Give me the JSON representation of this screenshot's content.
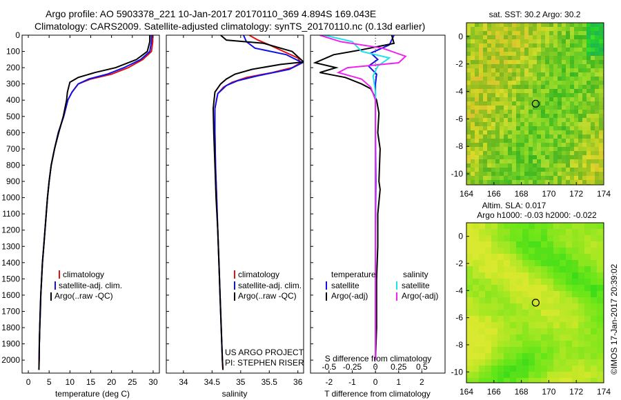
{
  "header": {
    "line1": "Argo profile: AO 5903378_221 10-Jan-2017 20170110_369 4.894S 169.043E",
    "line2": "Climatology: CARS2009. Satellite-adjusted climatology: synTS_20170110.nc (0.13d earlier)"
  },
  "colors": {
    "climatology": "#e01010",
    "satellite": "#1010e8",
    "argo": "#000000",
    "sal_satellite": "#22e0ee",
    "sal_argo": "#ee22ee"
  },
  "chart_data": [
    {
      "type": "line",
      "title": "",
      "xlabel": "temperature (deg C)",
      "ylabel": "",
      "xlim": [
        -1.5,
        31.5
      ],
      "ylim": [
        2080,
        0
      ],
      "xticks": [
        0,
        5,
        10,
        15,
        20,
        25,
        30
      ],
      "yticks": [
        0,
        100,
        200,
        300,
        400,
        500,
        600,
        700,
        800,
        900,
        1000,
        1100,
        1200,
        1300,
        1400,
        1500,
        1600,
        1700,
        1800,
        1900,
        2000
      ],
      "legend": [
        "climatology",
        "satellite-adj. clim.",
        "Argo(..raw -QC)"
      ],
      "series": [
        {
          "name": "climatology",
          "color": "#e01010",
          "points": [
            [
              29.9,
              0
            ],
            [
              29.9,
              40
            ],
            [
              29.6,
              100
            ],
            [
              27.5,
              150
            ],
            [
              24,
              200
            ],
            [
              20,
              240
            ],
            [
              15,
              270
            ],
            [
              12,
              300
            ],
            [
              10.5,
              350
            ],
            [
              9.5,
              400
            ],
            [
              8.5,
              500
            ],
            [
              7.2,
              600
            ],
            [
              6.3,
              700
            ],
            [
              5.5,
              800
            ],
            [
              5.0,
              900
            ],
            [
              4.6,
              1000
            ],
            [
              4.3,
              1100
            ],
            [
              4.0,
              1200
            ],
            [
              3.7,
              1300
            ],
            [
              3.4,
              1400
            ],
            [
              3.2,
              1500
            ],
            [
              3.0,
              1600
            ],
            [
              2.9,
              1700
            ],
            [
              2.75,
              1800
            ],
            [
              2.65,
              1900
            ],
            [
              2.6,
              2000
            ],
            [
              2.55,
              2060
            ]
          ]
        },
        {
          "name": "satellite-adj. clim.",
          "color": "#1010e8",
          "points": [
            [
              29.6,
              0
            ],
            [
              29.6,
              40
            ],
            [
              29.2,
              100
            ],
            [
              27,
              150
            ],
            [
              23,
              200
            ],
            [
              19,
              240
            ],
            [
              14.5,
              270
            ],
            [
              12,
              300
            ],
            [
              10.5,
              350
            ],
            [
              9.5,
              400
            ],
            [
              8.5,
              500
            ],
            [
              7.2,
              600
            ],
            [
              6.3,
              700
            ],
            [
              5.5,
              800
            ],
            [
              5.0,
              900
            ],
            [
              4.6,
              1000
            ],
            [
              4.3,
              1100
            ],
            [
              4.0,
              1200
            ],
            [
              3.7,
              1300
            ],
            [
              3.4,
              1400
            ],
            [
              3.2,
              1500
            ],
            [
              3.0,
              1600
            ],
            [
              2.9,
              1700
            ],
            [
              2.75,
              1800
            ],
            [
              2.65,
              1900
            ],
            [
              2.6,
              2000
            ]
          ]
        },
        {
          "name": "Argo(..raw -QC)",
          "color": "#000000",
          "points": [
            [
              29.2,
              0
            ],
            [
              29.2,
              40
            ],
            [
              28.6,
              100
            ],
            [
              26,
              150
            ],
            [
              21,
              200
            ],
            [
              16,
              230
            ],
            [
              12,
              260
            ],
            [
              10,
              290
            ],
            [
              9.4,
              350
            ],
            [
              9.2,
              400
            ],
            [
              8.4,
              500
            ],
            [
              7.3,
              600
            ],
            [
              6.3,
              700
            ],
            [
              5.5,
              800
            ],
            [
              5.0,
              900
            ],
            [
              4.6,
              1000
            ],
            [
              4.3,
              1100
            ],
            [
              4.0,
              1200
            ],
            [
              3.7,
              1300
            ],
            [
              3.4,
              1400
            ],
            [
              3.2,
              1500
            ],
            [
              3.0,
              1600
            ],
            [
              2.85,
              1700
            ],
            [
              2.75,
              1800
            ],
            [
              2.65,
              1900
            ],
            [
              2.6,
              2000
            ],
            [
              2.55,
              2060
            ]
          ]
        }
      ]
    },
    {
      "type": "line",
      "title": "",
      "xlabel": "salinity",
      "ylabel": "",
      "xlim": [
        33.7,
        36.1
      ],
      "ylim": [
        2080,
        0
      ],
      "xticks": [
        34,
        34.5,
        35,
        35.5,
        36
      ],
      "xticklabels": [
        "34",
        "34.5",
        "35",
        "35.5",
        "36"
      ],
      "legend": [
        "climatology",
        "satellite-adj. clim.",
        "Argo(..raw -QC)"
      ],
      "annotations": [
        "US ARGO PROJECT",
        "PI: STEPHEN RISER"
      ],
      "series": [
        {
          "name": "climatology",
          "color": "#e01010",
          "points": [
            [
              35.15,
              0
            ],
            [
              35.3,
              30
            ],
            [
              35.5,
              60
            ],
            [
              35.75,
              100
            ],
            [
              36.0,
              140
            ],
            [
              36.05,
              170
            ],
            [
              35.9,
              200
            ],
            [
              35.55,
              230
            ],
            [
              35.1,
              260
            ],
            [
              34.85,
              290
            ],
            [
              34.7,
              320
            ],
            [
              34.6,
              360
            ],
            [
              34.55,
              450
            ],
            [
              34.55,
              600
            ],
            [
              34.56,
              800
            ],
            [
              34.58,
              1000
            ],
            [
              34.6,
              1200
            ],
            [
              34.62,
              1400
            ],
            [
              34.64,
              1600
            ],
            [
              34.66,
              1800
            ],
            [
              34.68,
              2000
            ],
            [
              34.69,
              2060
            ]
          ]
        },
        {
          "name": "satellite-adj. clim.",
          "color": "#1010e8",
          "points": [
            [
              35.05,
              0
            ],
            [
              35.1,
              40
            ],
            [
              35.25,
              80
            ],
            [
              35.8,
              120
            ],
            [
              36.08,
              170
            ],
            [
              35.85,
              210
            ],
            [
              35.3,
              250
            ],
            [
              34.95,
              280
            ],
            [
              34.75,
              310
            ],
            [
              34.6,
              360
            ],
            [
              34.55,
              450
            ],
            [
              34.55,
              600
            ],
            [
              34.56,
              800
            ],
            [
              34.58,
              1000
            ],
            [
              34.6,
              1200
            ],
            [
              34.62,
              1400
            ],
            [
              34.64,
              1600
            ],
            [
              34.66,
              1800
            ],
            [
              34.68,
              2000
            ]
          ]
        },
        {
          "name": "Argo(..raw -QC)",
          "color": "#000000",
          "points": [
            [
              34.65,
              0
            ],
            [
              34.75,
              30
            ],
            [
              35.4,
              50
            ],
            [
              35.9,
              100
            ],
            [
              36.1,
              165
            ],
            [
              35.7,
              180
            ],
            [
              35.2,
              210
            ],
            [
              34.9,
              240
            ],
            [
              34.75,
              270
            ],
            [
              34.65,
              300
            ],
            [
              34.55,
              350
            ],
            [
              34.52,
              450
            ],
            [
              34.53,
              600
            ],
            [
              34.55,
              800
            ],
            [
              34.57,
              1000
            ],
            [
              34.6,
              1200
            ],
            [
              34.62,
              1400
            ],
            [
              34.64,
              1600
            ],
            [
              34.66,
              1800
            ],
            [
              34.68,
              2000
            ],
            [
              34.69,
              2060
            ]
          ]
        }
      ]
    },
    {
      "type": "line",
      "title": "",
      "xlabel": "T difference from climatology",
      "xlabel_top": "S difference from climatology",
      "xlim": [
        -2.8,
        3.0
      ],
      "ylim": [
        2080,
        0
      ],
      "xticks": [
        -2,
        -1,
        0,
        1,
        2
      ],
      "xticks_s": [
        -0.5,
        -0.25,
        0,
        0.25,
        0.5
      ],
      "xticklabels_s": [
        "-0.5",
        "-0.25",
        "0",
        "0.25",
        "0.5"
      ],
      "legend_temperature_title": "temperature",
      "legend_salinity_title": "salinity",
      "legend_items": [
        "satellite",
        "Argo(-adj)",
        "satellite",
        "Argo(-adj)"
      ],
      "series": [
        {
          "name": "temperature satellite",
          "color": "#1010e8",
          "points": [
            [
              0.8,
              0
            ],
            [
              0.6,
              60
            ],
            [
              -0.2,
              110
            ],
            [
              0.1,
              150
            ],
            [
              -0.3,
              190
            ],
            [
              0.05,
              240
            ],
            [
              0.0,
              300
            ],
            [
              0.0,
              400
            ],
            [
              0.0,
              600
            ],
            [
              0.02,
              900
            ],
            [
              0.0,
              1200
            ],
            [
              0.0,
              1500
            ],
            [
              0.0,
              1800
            ],
            [
              0.0,
              2000
            ]
          ]
        },
        {
          "name": "temperature Argo(-adj)",
          "color": "#000000",
          "points": [
            [
              0.7,
              0
            ],
            [
              0.8,
              50
            ],
            [
              -0.6,
              90
            ],
            [
              -1.8,
              120
            ],
            [
              -2.6,
              170
            ],
            [
              -1.7,
              200
            ],
            [
              -2.4,
              230
            ],
            [
              -1.3,
              260
            ],
            [
              -0.6,
              300
            ],
            [
              -0.2,
              330
            ],
            [
              0.05,
              400
            ],
            [
              0.15,
              480
            ],
            [
              0.1,
              600
            ],
            [
              0.2,
              700
            ],
            [
              0.15,
              900
            ],
            [
              0.2,
              950
            ],
            [
              0.1,
              1100
            ],
            [
              0.1,
              1300
            ],
            [
              0.05,
              1500
            ],
            [
              0.05,
              1800
            ],
            [
              0.0,
              2000
            ]
          ]
        },
        {
          "name": "salinity satellite",
          "color": "#22e0ee",
          "points": [
            [
              -2.2,
              0
            ],
            [
              -1.0,
              40
            ],
            [
              -0.6,
              100
            ],
            [
              0.6,
              140
            ],
            [
              0.1,
              190
            ],
            [
              -0.1,
              250
            ],
            [
              0.0,
              350
            ],
            [
              0.0,
              600
            ],
            [
              0.0,
              900
            ],
            [
              0.0,
              1300
            ],
            [
              0.0,
              1800
            ],
            [
              0.0,
              2000
            ]
          ]
        },
        {
          "name": "salinity Argo(-adj)",
          "color": "#ee22ee",
          "points": [
            [
              -2.4,
              0
            ],
            [
              -1.5,
              40
            ],
            [
              0.3,
              80
            ],
            [
              1.3,
              130
            ],
            [
              1.0,
              170
            ],
            [
              -1.2,
              200
            ],
            [
              -1.6,
              230
            ],
            [
              -0.6,
              270
            ],
            [
              -0.2,
              320
            ],
            [
              0.0,
              400
            ],
            [
              0.0,
              600
            ],
            [
              0.0,
              900
            ],
            [
              0.0,
              1300
            ],
            [
              0.0,
              1800
            ],
            [
              0.0,
              2000
            ]
          ]
        }
      ]
    },
    {
      "type": "heatmap",
      "title": "sat. SST: 30.2  Argo: 30.2",
      "xlim": [
        164,
        174
      ],
      "ylim": [
        -10.8,
        1.0
      ],
      "xticks": [
        164,
        166,
        168,
        170,
        172,
        174
      ],
      "yticks": [
        0,
        -2,
        -4,
        -6,
        -8,
        -10
      ],
      "marker": {
        "lon": 169.043,
        "lat": -4.894
      }
    },
    {
      "type": "heatmap",
      "title_line1": "Altim. SLA: 0.017",
      "title_line2": "Argo h1000: -0.03  h2000: -0.022",
      "xlim": [
        164,
        174
      ],
      "ylim": [
        -10.8,
        1.0
      ],
      "xticks": [
        164,
        166,
        168,
        170,
        172,
        174
      ],
      "yticks": [
        0,
        -2,
        -4,
        -6,
        -8,
        -10
      ],
      "marker": {
        "lon": 169.043,
        "lat": -4.894
      }
    }
  ],
  "footer": {
    "credit": "©IMOS 17-Jan-2017 20:39:02"
  }
}
